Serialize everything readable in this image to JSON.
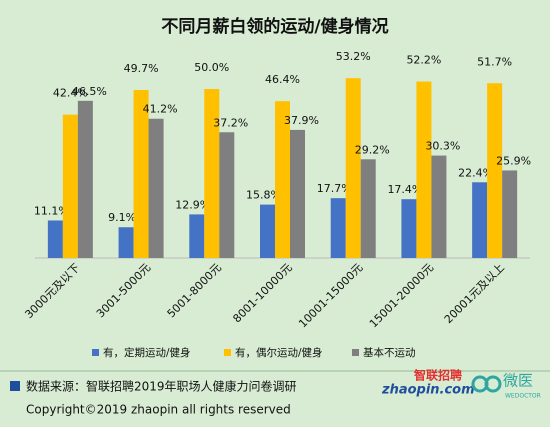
{
  "chart_data": {
    "type": "bar",
    "title": "不同月薪白领的运动/健身情况",
    "categories": [
      "3000元及以下",
      "3001-5000元",
      "5001-8000元",
      "8001-10000元",
      "10001-15000元",
      "15001-20000元",
      "20001元及以上"
    ],
    "series": [
      {
        "name": "有，定期运动/健身",
        "color": "#4472c4",
        "values": [
          11.1,
          9.1,
          12.9,
          15.8,
          17.7,
          17.4,
          22.4
        ],
        "value_labels": [
          "11.1%",
          "9.1%",
          "12.9%",
          "15.8%",
          "17.7%",
          "17.4%",
          "22.4%"
        ]
      },
      {
        "name": "有，偶尔运动/健身",
        "color": "#ffc000",
        "values": [
          42.4,
          49.7,
          50.0,
          46.4,
          53.2,
          52.2,
          51.7
        ],
        "value_labels": [
          "42.4%",
          "49.7%",
          "50.0%",
          "46.4%",
          "53.2%",
          "52.2%",
          "51.7%"
        ]
      },
      {
        "name": "基本不运动",
        "color": "#7f7f7f",
        "values": [
          46.5,
          41.2,
          37.2,
          37.9,
          29.2,
          30.3,
          25.9
        ],
        "value_labels": [
          "46.5%",
          "41.2%",
          "37.2%",
          "37.9%",
          "29.2%",
          "30.3%",
          "25.9%"
        ]
      }
    ],
    "legend": "bottom"
  },
  "footer": {
    "source": "数据来源：智联招聘2019年职场人健康力问卷调研",
    "copyright": "Copyright©2019 zhaopin all rights reserved",
    "logo_brand": "智联招聘",
    "logo_domain": "zhaopin.com",
    "logo_partner": "微医",
    "logo_partner_en": "WEDOCTOR"
  }
}
